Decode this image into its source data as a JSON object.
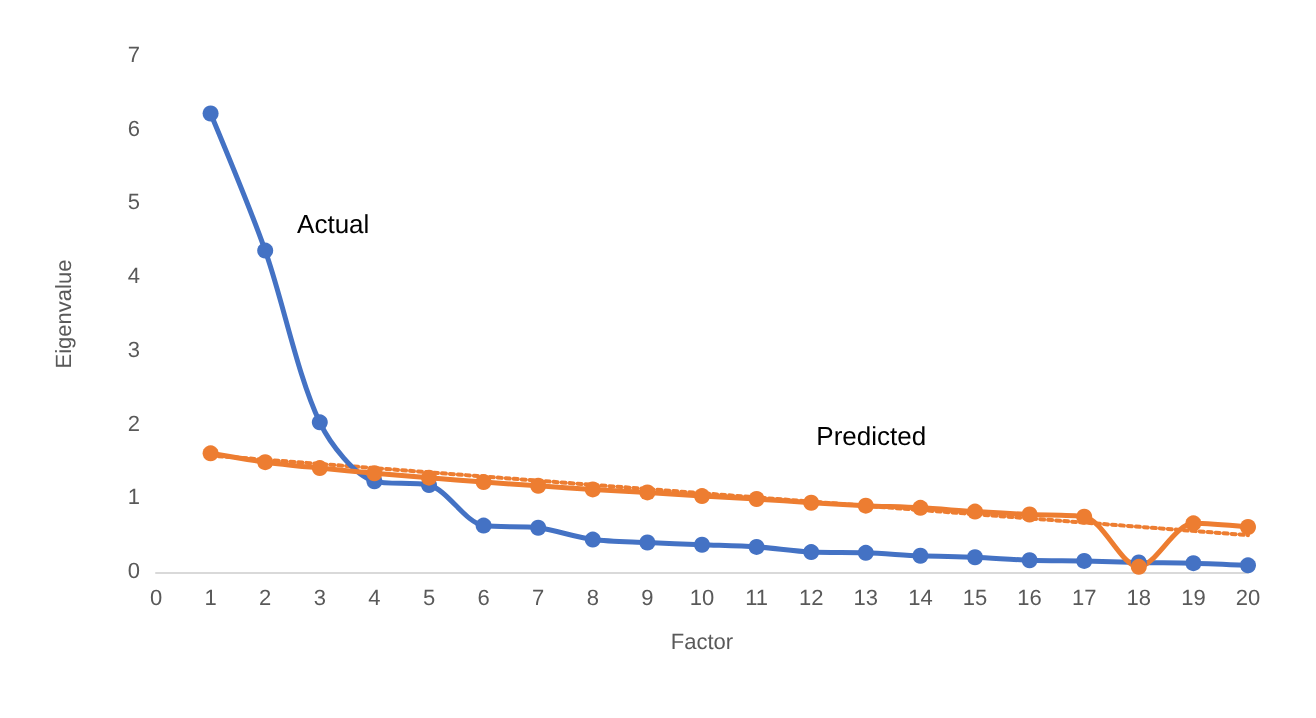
{
  "chart_data": {
    "type": "line",
    "xlabel": "Factor",
    "ylabel": "Eigenvalue",
    "x": [
      1,
      2,
      3,
      4,
      5,
      6,
      7,
      8,
      9,
      10,
      11,
      12,
      13,
      14,
      15,
      16,
      17,
      18,
      19,
      20
    ],
    "series": [
      {
        "name": "Actual",
        "color": "#4472c4",
        "values": [
          6.22,
          4.36,
          2.03,
          1.23,
          1.18,
          0.63,
          0.6,
          0.44,
          0.4,
          0.37,
          0.34,
          0.27,
          0.26,
          0.22,
          0.2,
          0.16,
          0.15,
          0.13,
          0.12,
          0.09
        ]
      },
      {
        "name": "Predicted",
        "color": "#ed7d31",
        "values": [
          1.61,
          1.49,
          1.41,
          1.34,
          1.28,
          1.22,
          1.17,
          1.12,
          1.08,
          1.03,
          0.99,
          0.94,
          0.9,
          0.87,
          0.82,
          0.78,
          0.75,
          0.07,
          0.66,
          0.61
        ]
      },
      {
        "color": "#ed7d31",
        "x": [
          1,
          20
        ],
        "values": [
          1.58,
          0.5
        ],
        "marker": "none",
        "line_style": "dotted"
      }
    ],
    "xlim": [
      0,
      20
    ],
    "xticks": [
      0,
      1,
      2,
      3,
      4,
      5,
      6,
      7,
      8,
      9,
      10,
      11,
      12,
      13,
      14,
      15,
      16,
      17,
      18,
      19,
      20
    ],
    "ylim": [
      0,
      7
    ],
    "yticks": [
      0,
      1,
      2,
      3,
      4,
      5,
      6,
      7
    ],
    "grid": false,
    "marker": "circle",
    "line_style": "solid"
  }
}
